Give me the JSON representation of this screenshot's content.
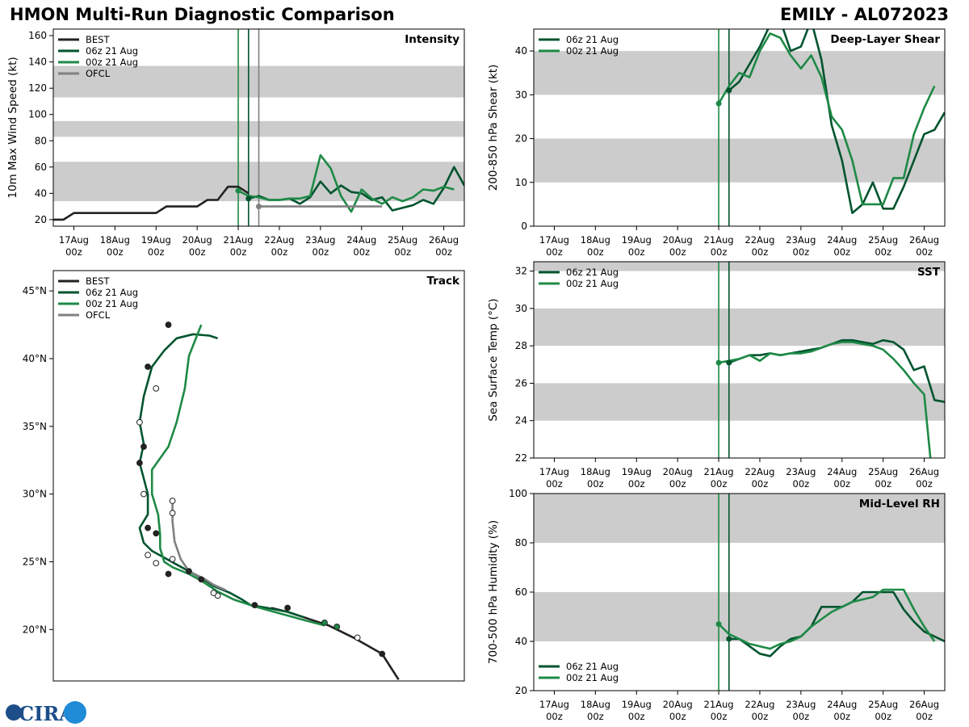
{
  "header": {
    "title_left": "HMON Multi-Run Diagnostic Comparison",
    "title_right": "EMILY - AL072023"
  },
  "logo": {
    "text": "CIRA"
  },
  "colors": {
    "best": "#222222",
    "run06": "#00542e",
    "run00": "#1e8a46",
    "ofcl": "#808080",
    "band": "#cccccc"
  },
  "time_ticks": {
    "days": [
      "17Aug",
      "18Aug",
      "19Aug",
      "20Aug",
      "21Aug",
      "22Aug",
      "23Aug",
      "24Aug",
      "25Aug",
      "26Aug"
    ],
    "hour": "00z",
    "positions": [
      17,
      18,
      19,
      20,
      21,
      22,
      23,
      24,
      25,
      26
    ],
    "range": [
      16.5,
      26.5
    ]
  },
  "chart_data": [
    {
      "type": "line",
      "title": "Intensity",
      "ylabel": "10m Max Wind Speed (kt)",
      "ylim": [
        15,
        165
      ],
      "yticks": [
        20,
        40,
        60,
        80,
        100,
        120,
        140,
        160
      ],
      "bands": [
        [
          34,
          64
        ],
        [
          83,
          95
        ],
        [
          113,
          137
        ]
      ],
      "vlines": [
        21.0,
        21.25,
        21.5
      ],
      "legend": [
        "BEST",
        "06z 21 Aug",
        "00z 21 Aug",
        "OFCL"
      ],
      "series": [
        {
          "name": "BEST",
          "x": [
            16.5,
            16.75,
            17,
            17.25,
            17.5,
            17.75,
            18,
            18.25,
            18.5,
            18.75,
            19,
            19.25,
            19.5,
            19.75,
            20,
            20.25,
            20.5,
            20.75,
            21,
            21.25
          ],
          "y": [
            20,
            20,
            25,
            25,
            25,
            25,
            25,
            25,
            25,
            25,
            25,
            30,
            30,
            30,
            30,
            35,
            35,
            45,
            45,
            40
          ]
        },
        {
          "name": "06z 21 Aug",
          "x": [
            21.25,
            21.5,
            21.75,
            22,
            22.25,
            22.5,
            22.75,
            23,
            23.25,
            23.5,
            23.75,
            24,
            24.25,
            24.5,
            24.75,
            25,
            25.25,
            25.5,
            25.75,
            26,
            26.25,
            26.5
          ],
          "y": [
            36,
            38,
            35,
            35,
            36,
            32,
            37,
            49,
            40,
            46,
            41,
            40,
            35,
            37,
            27,
            29,
            31,
            35,
            32,
            44,
            60,
            46
          ]
        },
        {
          "name": "00z 21 Aug",
          "x": [
            21,
            21.25,
            21.5,
            21.75,
            22,
            22.25,
            22.5,
            22.75,
            23,
            23.25,
            23.5,
            23.75,
            24,
            24.25,
            24.5,
            24.75,
            25,
            25.25,
            25.5,
            25.75,
            26,
            26.25
          ],
          "y": [
            42,
            38,
            37,
            35,
            35,
            36,
            36,
            38,
            69,
            59,
            38,
            26,
            43,
            36,
            32,
            37,
            34,
            37,
            43,
            42,
            45,
            43
          ]
        },
        {
          "name": "OFCL",
          "x": [
            21.5,
            24.5
          ],
          "y": [
            30,
            30
          ]
        }
      ]
    },
    {
      "type": "line",
      "title": "Deep-Layer Shear",
      "ylabel": "200-850 hPa Shear (kt)",
      "ylim": [
        0,
        45
      ],
      "yticks": [
        0,
        10,
        20,
        30,
        40
      ],
      "bands": [
        [
          10,
          20
        ],
        [
          30,
          40
        ]
      ],
      "vlines": [
        21.0,
        21.25
      ],
      "legend": [
        "06z 21 Aug",
        "00z 21 Aug"
      ],
      "series": [
        {
          "name": "06z 21 Aug",
          "x": [
            21.25,
            21.5,
            21.75,
            22,
            22.25,
            22.5,
            22.75,
            23,
            23.25,
            23.5,
            23.75,
            24,
            24.25,
            24.5,
            24.75,
            25,
            25.25,
            25.5,
            25.75,
            26,
            26.25,
            26.5
          ],
          "y": [
            31,
            33,
            37,
            41,
            46,
            47,
            40,
            41,
            47,
            38,
            23,
            15,
            3,
            5,
            10,
            4,
            4,
            9,
            15,
            21,
            22,
            26
          ]
        },
        {
          "name": "00z 21 Aug",
          "x": [
            21,
            21.25,
            21.5,
            21.75,
            22,
            22.25,
            22.5,
            22.75,
            23,
            23.25,
            23.5,
            23.75,
            24,
            24.25,
            24.5,
            24.75,
            25,
            25.25,
            25.5,
            25.75,
            26,
            26.25
          ],
          "y": [
            28,
            32,
            35,
            34,
            40,
            44,
            43,
            39,
            36,
            39,
            34,
            25,
            22,
            15,
            5,
            5,
            5,
            11,
            11,
            21,
            27,
            32
          ]
        }
      ]
    },
    {
      "type": "line",
      "title": "SST",
      "ylabel": "Sea Surface Temp (°C)",
      "ylim": [
        22,
        32.5
      ],
      "yticks": [
        22,
        24,
        26,
        28,
        30,
        32
      ],
      "bands": [
        [
          24,
          26
        ],
        [
          28,
          30
        ],
        [
          32,
          32.5
        ]
      ],
      "vlines": [
        21.0,
        21.25
      ],
      "legend": [
        "06z 21 Aug",
        "00z 21 Aug"
      ],
      "series": [
        {
          "name": "06z 21 Aug",
          "x": [
            21.25,
            21.5,
            21.75,
            22,
            22.25,
            22.5,
            22.75,
            23,
            23.25,
            23.5,
            23.75,
            24,
            24.25,
            24.5,
            24.75,
            25,
            25.25,
            25.5,
            25.75,
            26,
            26.25,
            26.5
          ],
          "y": [
            27.1,
            27.3,
            27.5,
            27.5,
            27.6,
            27.5,
            27.6,
            27.7,
            27.8,
            27.9,
            28.1,
            28.3,
            28.3,
            28.2,
            28.1,
            28.3,
            28.2,
            27.8,
            26.7,
            26.9,
            25.1,
            25.0
          ]
        },
        {
          "name": "00z 21 Aug",
          "x": [
            21,
            21.25,
            21.5,
            21.75,
            22,
            22.25,
            22.5,
            22.75,
            23,
            23.25,
            23.5,
            23.75,
            24,
            24.25,
            24.5,
            24.75,
            25,
            25.25,
            25.5,
            25.75,
            26,
            26.15
          ],
          "y": [
            27.1,
            27.2,
            27.3,
            27.5,
            27.2,
            27.6,
            27.5,
            27.6,
            27.6,
            27.7,
            27.9,
            28.1,
            28.2,
            28.2,
            28.1,
            28.0,
            27.8,
            27.3,
            26.7,
            26.0,
            25.4,
            22.0
          ]
        }
      ]
    },
    {
      "type": "line",
      "title": "Mid-Level RH",
      "ylabel": "700-500 hPa Humidity (%)",
      "ylim": [
        20,
        100
      ],
      "yticks": [
        20,
        40,
        60,
        80,
        100
      ],
      "bands": [
        [
          40,
          60
        ],
        [
          80,
          100
        ]
      ],
      "vlines": [
        21.0,
        21.25
      ],
      "legend": [
        "06z 21 Aug",
        "00z 21 Aug"
      ],
      "series": [
        {
          "name": "06z 21 Aug",
          "x": [
            21.25,
            21.5,
            21.75,
            22,
            22.25,
            22.5,
            22.75,
            23,
            23.25,
            23.5,
            23.75,
            24,
            24.25,
            24.5,
            24.75,
            25,
            25.25,
            25.5,
            25.75,
            26,
            26.25,
            26.5
          ],
          "y": [
            41,
            41,
            38,
            35,
            34,
            38,
            41,
            42,
            46,
            54,
            54,
            54,
            56,
            60,
            60,
            60,
            60,
            53,
            48,
            44,
            42,
            40
          ]
        },
        {
          "name": "00z 21 Aug",
          "x": [
            21,
            21.25,
            21.5,
            21.75,
            22,
            22.25,
            22.5,
            22.75,
            23,
            23.25,
            23.5,
            23.75,
            24,
            24.25,
            24.5,
            24.75,
            25,
            25.25,
            25.5,
            25.75,
            26,
            26.25
          ],
          "y": [
            47,
            43,
            41,
            39,
            38,
            37,
            39,
            40,
            42,
            46,
            49,
            52,
            54,
            56,
            57,
            58,
            61,
            61,
            61,
            53,
            46,
            40
          ]
        }
      ]
    },
    {
      "type": "line",
      "title": "Track",
      "ylim": [
        16.2,
        46.5
      ],
      "yticks": [
        20,
        25,
        30,
        35,
        40,
        45
      ],
      "ytick_labels": [
        "20°N",
        "25°N",
        "30°N",
        "35°N",
        "40°N",
        "45°N"
      ],
      "legend": [
        "BEST",
        "06z 21 Aug",
        "00z 21 Aug",
        "OFCL"
      ],
      "series": [
        {
          "name": "BEST",
          "x": [
            0.84,
            0.8,
            0.73,
            0.67,
            0.61,
            0.57,
            0.53
          ],
          "y": [
            16.3,
            18.2,
            19.4,
            20.3,
            20.9,
            21.3,
            21.6
          ]
        },
        {
          "name": "06z 21 Aug",
          "x": [
            0.61,
            0.57,
            0.52,
            0.48,
            0.46,
            0.43,
            0.39,
            0.36,
            0.33,
            0.3,
            0.27,
            0.24,
            0.22,
            0.21,
            0.23,
            0.23,
            0.21,
            0.22,
            0.21,
            0.22,
            0.24,
            0.27,
            0.3,
            0.34,
            0.38,
            0.4
          ],
          "y": [
            20.9,
            21.3,
            21.6,
            21.8,
            22.2,
            22.7,
            23.2,
            23.8,
            24.3,
            24.8,
            25.3,
            25.8,
            26.4,
            27.5,
            28.5,
            30.0,
            32.3,
            33.7,
            35.3,
            37.2,
            39.4,
            40.6,
            41.5,
            41.8,
            41.7,
            41.5
          ]
        },
        {
          "name": "00z 21 Aug",
          "x": [
            0.66,
            0.61,
            0.55,
            0.49,
            0.44,
            0.4,
            0.36,
            0.33,
            0.29,
            0.27,
            0.26,
            0.26,
            0.255,
            0.24,
            0.24,
            0.28,
            0.3,
            0.32,
            0.33,
            0.36
          ],
          "y": [
            20.3,
            20.7,
            21.2,
            21.7,
            22.2,
            22.8,
            23.6,
            24.1,
            24.6,
            25.0,
            26.0,
            27.0,
            28.5,
            30.0,
            31.8,
            33.5,
            35.3,
            37.8,
            40.2,
            42.5
          ]
        },
        {
          "name": "OFCL",
          "x": [
            0.42,
            0.39,
            0.37,
            0.33,
            0.31,
            0.295,
            0.29,
            0.29
          ],
          "y": [
            22.9,
            23.3,
            23.7,
            24.3,
            25.2,
            26.5,
            28.0,
            29.5
          ]
        }
      ],
      "markers": {
        "best": [
          [
            0.8,
            18.2,
            "dark"
          ],
          [
            0.74,
            19.4,
            "open"
          ],
          [
            0.57,
            21.6,
            "dark"
          ]
        ],
        "run06": [
          [
            0.49,
            21.8,
            "dark"
          ],
          [
            0.4,
            22.5,
            "open"
          ],
          [
            0.36,
            23.7,
            "dark"
          ],
          [
            0.33,
            24.3,
            "dark"
          ],
          [
            0.28,
            24.1,
            "dark"
          ],
          [
            0.25,
            24.9,
            "open"
          ],
          [
            0.23,
            25.5,
            "open"
          ],
          [
            0.25,
            27.1,
            "dark"
          ],
          [
            0.23,
            27.5,
            "dark"
          ],
          [
            0.22,
            30.0,
            "open"
          ],
          [
            0.21,
            32.3,
            "dark"
          ],
          [
            0.22,
            33.5,
            "dark"
          ],
          [
            0.21,
            35.3,
            "open"
          ],
          [
            0.23,
            39.4,
            "dark"
          ],
          [
            0.25,
            37.8,
            "open"
          ],
          [
            0.28,
            42.5,
            "dark"
          ]
        ],
        "run00": [
          [
            0.69,
            20.2,
            "green"
          ],
          [
            0.66,
            20.5,
            "green"
          ]
        ],
        "ofcl": [
          [
            0.39,
            22.7,
            "open"
          ],
          [
            0.29,
            25.2,
            "open"
          ],
          [
            0.29,
            28.6,
            "open"
          ],
          [
            0.29,
            29.5,
            "open"
          ]
        ]
      }
    }
  ]
}
